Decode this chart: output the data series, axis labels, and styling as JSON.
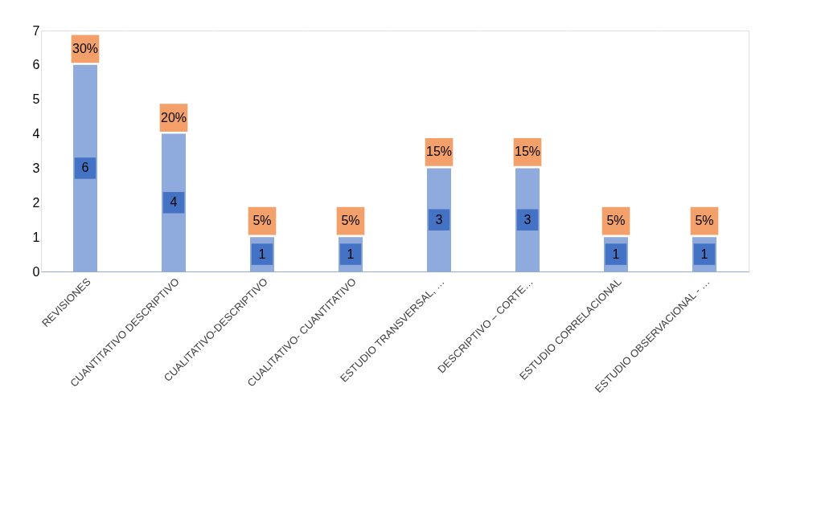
{
  "chart_data": {
    "type": "bar",
    "categories": [
      "REVISIONES",
      "CUANTITATIVO DESCRIPTIVO",
      "CUALITATIVO-DESCRIPTIVO",
      "CUALITATIVO- CUANTITATIVO",
      "ESTUDIO TRANSVERSAL, …",
      "DESCRIPTIVO – CORTE…",
      "ESTUDIO CORRELACIONAL",
      "ESTUDIO OBSERVACIONAL - …"
    ],
    "values": [
      6,
      4,
      1,
      1,
      3,
      3,
      1,
      1
    ],
    "color": "#8faadc",
    "data_labels": true,
    "annotations": [
      {
        "text": "30%",
        "x": "REVISIONES",
        "y": 6
      },
      {
        "text": "20%",
        "x": "CUANTITATIVO DESCRIPTIVO",
        "y": 4
      },
      {
        "text": "5%",
        "x": "CUALITATIVO-DESCRIPTIVO",
        "y": 1
      },
      {
        "text": "5%",
        "x": "CUALITATIVO- CUANTITATIVO",
        "y": 1
      },
      {
        "text": "15%",
        "x": "ESTUDIO TRANSVERSAL, …",
        "y": 3
      },
      {
        "text": "15%",
        "x": "DESCRIPTIVO – CORTE…",
        "y": 3
      },
      {
        "text": "5%",
        "x": "ESTUDIO CORRELACIONAL",
        "y": 1
      },
      {
        "text": "5%",
        "x": "ESTUDIO OBSERVACIONAL - …",
        "y": 1
      }
    ],
    "ylim": [
      0,
      7
    ],
    "yticks": [
      0,
      1,
      2,
      3,
      4,
      5,
      6,
      7
    ],
    "grid": "x"
  }
}
